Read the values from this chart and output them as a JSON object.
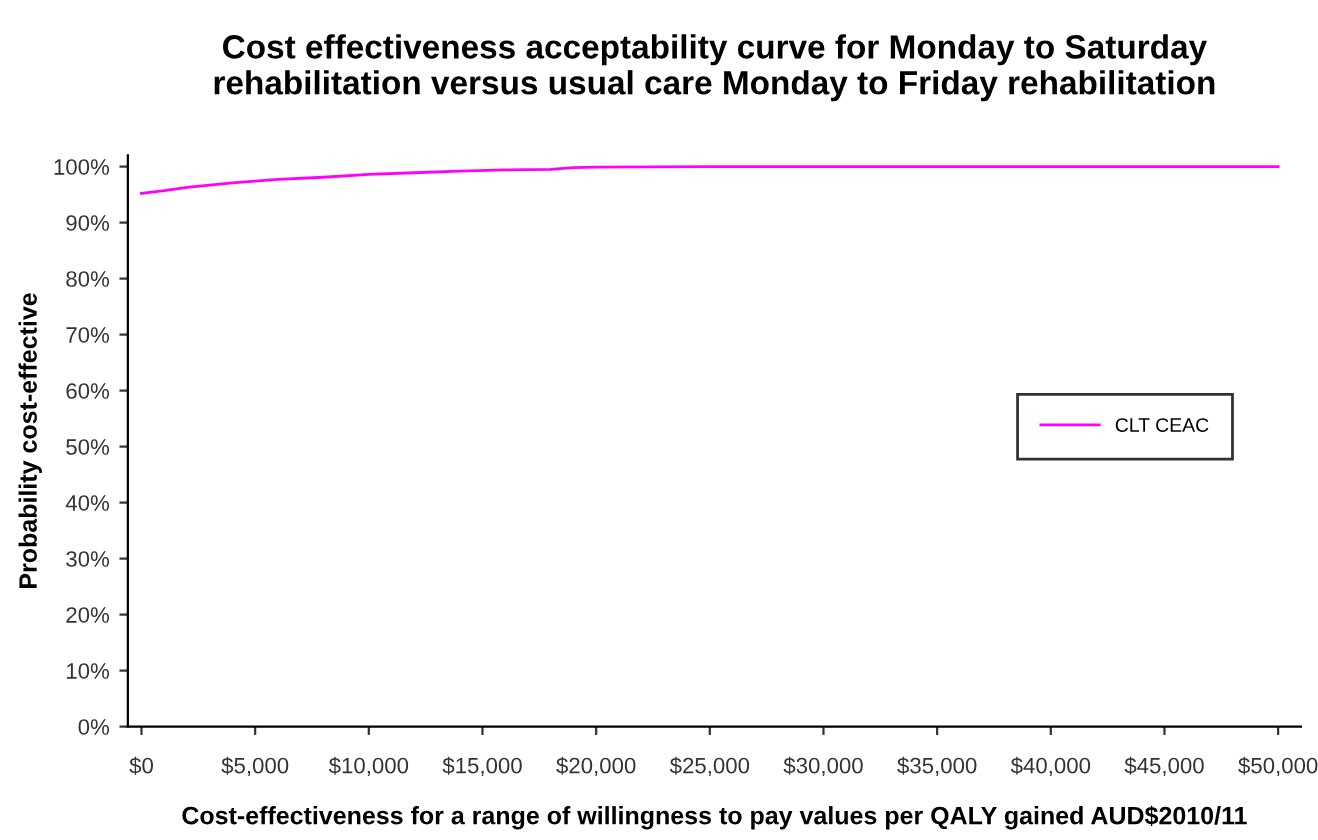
{
  "chart_data": {
    "type": "line",
    "title": "Cost effectiveness acceptability curve for Monday to Saturday\nrehabilitation versus usual care Monday to Friday rehabilitation",
    "xlabel": "Cost-effectiveness for a range of willingness to pay values per QALY gained AUD$2010/11",
    "ylabel": "Probability cost-effective",
    "x": [
      0,
      1000,
      2000,
      3000,
      4000,
      5000,
      6000,
      8000,
      10000,
      12000,
      14000,
      16000,
      18000,
      19000,
      20000,
      25000,
      30000,
      35000,
      40000,
      45000,
      50000
    ],
    "series": [
      {
        "name": "CLT CEAC",
        "color": "#ff00ff",
        "values": [
          0.952,
          0.957,
          0.963,
          0.967,
          0.971,
          0.974,
          0.977,
          0.981,
          0.986,
          0.989,
          0.992,
          0.994,
          0.995,
          0.998,
          0.999,
          1.0,
          1.0,
          1.0,
          1.0,
          1.0,
          1.0
        ]
      }
    ],
    "xlim": [
      -600,
      51000
    ],
    "xticks": [
      {
        "value": 0,
        "label": "$0"
      },
      {
        "value": 5000,
        "label": "$5,000"
      },
      {
        "value": 10000,
        "label": "$10,000"
      },
      {
        "value": 15000,
        "label": "$15,000"
      },
      {
        "value": 20000,
        "label": "$20,000"
      },
      {
        "value": 25000,
        "label": "$25,000"
      },
      {
        "value": 30000,
        "label": "$30,000"
      },
      {
        "value": 35000,
        "label": "$35,000"
      },
      {
        "value": 40000,
        "label": "$40,000"
      },
      {
        "value": 45000,
        "label": "$45,000"
      },
      {
        "value": 50000,
        "label": "$50,000"
      }
    ],
    "ylim": [
      0,
      1.02
    ],
    "yticks": [
      {
        "value": 0,
        "label": "0%"
      },
      {
        "value": 0.1,
        "label": "10%"
      },
      {
        "value": 0.2,
        "label": "20%"
      },
      {
        "value": 0.3,
        "label": "30%"
      },
      {
        "value": 0.4,
        "label": "40%"
      },
      {
        "value": 0.5,
        "label": "50%"
      },
      {
        "value": 0.6,
        "label": "60%"
      },
      {
        "value": 0.7,
        "label": "70%"
      },
      {
        "value": 0.8,
        "label": "80%"
      },
      {
        "value": 0.9,
        "label": "90%"
      },
      {
        "value": 1.0,
        "label": "100%"
      }
    ],
    "grid": false,
    "legend": "center right",
    "marker": "none",
    "line_style": "solid"
  }
}
